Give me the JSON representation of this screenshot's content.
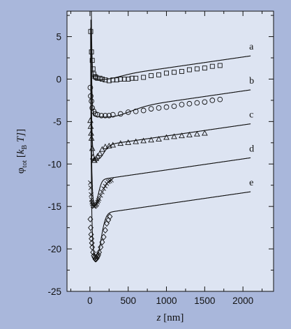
{
  "chart_data": {
    "type": "scatter",
    "title": "",
    "xlabel_parts": [
      "z",
      " [nm]"
    ],
    "ylabel_parts": [
      "φ",
      "tot",
      " [",
      "k",
      "B",
      " T]"
    ],
    "xlim": [
      -300,
      2400
    ],
    "ylim": [
      -25,
      8
    ],
    "x_ticks": [
      0,
      500,
      1000,
      1500,
      2000
    ],
    "y_ticks": [
      5,
      0,
      -5,
      -10,
      -15,
      -20,
      -25
    ],
    "x_tick_labels": [
      "0",
      "500",
      "1000",
      "1500",
      "2000"
    ],
    "y_tick_labels": [
      "5",
      "0",
      "-5",
      "-10",
      "-15",
      "-20",
      "-25"
    ],
    "grid": false,
    "colors": {
      "background": "#a9b7db",
      "plot_area": "#dde4f2",
      "ink": "#111111"
    },
    "series": [
      {
        "label": "a",
        "marker": "square",
        "offset": 0,
        "well_z": 230,
        "well_depth": 0.3,
        "slope_per_1000nm": 1.3,
        "z": [
          10,
          20,
          30,
          40,
          50,
          65,
          80,
          100,
          130,
          160,
          200,
          250,
          300,
          350,
          400,
          450,
          500,
          550,
          600,
          700,
          800,
          900,
          1000,
          1100,
          1200,
          1300,
          1400,
          1500,
          1600,
          1700
        ],
        "phi": [
          5.6,
          3.2,
          2.2,
          1.2,
          0.6,
          0.3,
          0.2,
          0.1,
          0.1,
          0.0,
          -0.1,
          -0.2,
          -0.1,
          -0.1,
          0.0,
          0.0,
          0.0,
          0.1,
          0.1,
          0.2,
          0.4,
          0.5,
          0.7,
          0.8,
          0.9,
          1.1,
          1.2,
          1.3,
          1.5,
          1.6
        ]
      },
      {
        "label": "b",
        "marker": "circle",
        "offset": -4,
        "well_z": 300,
        "well_depth": 0.8,
        "slope_per_1000nm": 1.3,
        "z": [
          5,
          10,
          20,
          30,
          50,
          70,
          100,
          150,
          200,
          250,
          300,
          400,
          500,
          600,
          700,
          800,
          900,
          1000,
          1100,
          1200,
          1300,
          1400,
          1500,
          1600,
          1700
        ],
        "phi": [
          -1.0,
          -2.0,
          -2.6,
          -3.4,
          -3.8,
          -4.1,
          -4.2,
          -4.3,
          -4.3,
          -4.3,
          -4.2,
          -4.1,
          -3.9,
          -3.8,
          -3.7,
          -3.5,
          -3.4,
          -3.3,
          -3.2,
          -3.0,
          -2.9,
          -2.8,
          -2.7,
          -2.5,
          -2.4
        ]
      },
      {
        "label": "c",
        "marker": "triangle",
        "offset": -8,
        "well_z": 100,
        "well_depth": 1.6,
        "slope_per_1000nm": 1.3,
        "z": [
          5,
          10,
          15,
          20,
          30,
          40,
          50,
          60,
          80,
          100,
          130,
          160,
          200,
          250,
          300,
          400,
          500,
          600,
          700,
          800,
          900,
          1000,
          1100,
          1200,
          1300,
          1400,
          1500
        ],
        "phi": [
          -4.9,
          -5.6,
          -6.4,
          -7.0,
          -8.2,
          -9.2,
          -9.6,
          -9.6,
          -9.4,
          -9.1,
          -8.8,
          -8.3,
          -8.0,
          -7.9,
          -7.8,
          -7.6,
          -7.5,
          -7.4,
          -7.3,
          -7.2,
          -7.1,
          -6.9,
          -6.8,
          -6.7,
          -6.6,
          -6.5,
          -6.4
        ]
      },
      {
        "label": "d",
        "marker": "x",
        "offset": -12,
        "well_z": 60,
        "well_depth": 3.0,
        "slope_per_1000nm": 1.3,
        "z": [
          5,
          10,
          15,
          20,
          25,
          30,
          40,
          50,
          60,
          70,
          80,
          90,
          100,
          110,
          120,
          140,
          160,
          180,
          200,
          220,
          240,
          260,
          280
        ],
        "phi": [
          -12.2,
          -12.8,
          -13.6,
          -14.2,
          -14.5,
          -14.7,
          -14.9,
          -15.0,
          -15.0,
          -14.9,
          -14.8,
          -14.7,
          -14.5,
          -14.3,
          -14.1,
          -13.7,
          -13.3,
          -12.9,
          -12.6,
          -12.3,
          -12.1,
          -12.0,
          -11.9
        ]
      },
      {
        "label": "e",
        "marker": "diamond",
        "offset": -16,
        "well_z": 80,
        "well_depth": 5.3,
        "slope_per_1000nm": 1.3,
        "z": [
          5,
          10,
          15,
          20,
          25,
          30,
          40,
          50,
          60,
          70,
          80,
          90,
          100,
          110,
          120,
          140,
          160,
          180,
          200,
          220,
          240,
          260
        ],
        "phi": [
          -16.5,
          -17.5,
          -18.3,
          -18.8,
          -19.3,
          -19.8,
          -20.4,
          -20.8,
          -21.0,
          -21.2,
          -21.2,
          -21.1,
          -20.9,
          -20.7,
          -20.4,
          -19.8,
          -19.2,
          -18.6,
          -17.8,
          -17.0,
          -16.6,
          -16.2
        ]
      }
    ]
  }
}
